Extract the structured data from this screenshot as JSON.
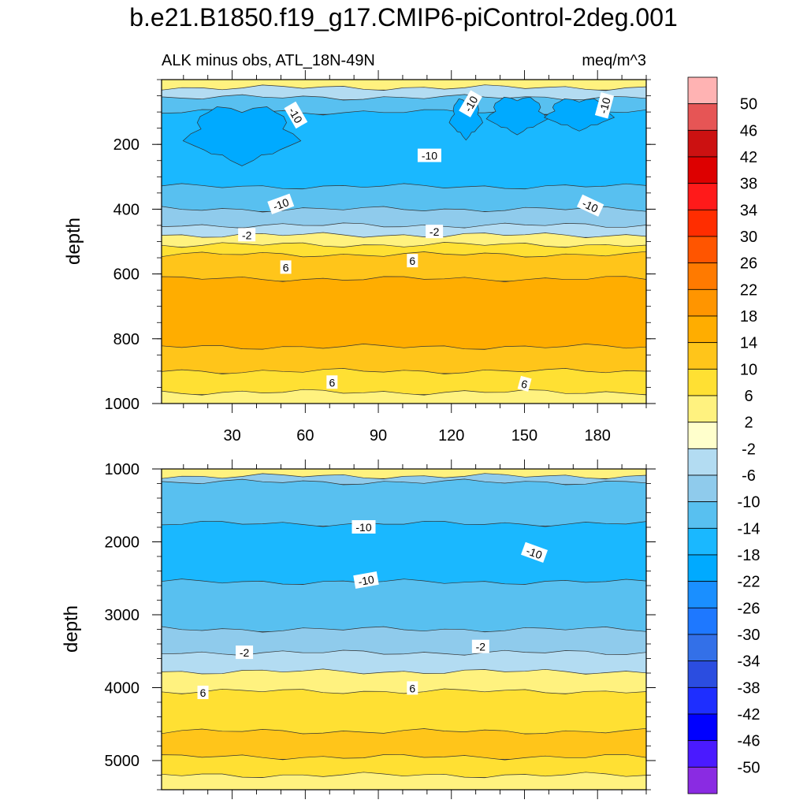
{
  "chart_data": [
    {
      "type": "heatmap",
      "panel": "upper",
      "title": "b.e21.B1850.f19_g17.CMIP6-piControl-2deg.001",
      "left_string": "ALK minus obs, ATL_18N-49N",
      "right_string": "meq/m^3",
      "xlabel": "",
      "ylabel": "depth",
      "xlim": [
        1,
        200
      ],
      "ylim": [
        0,
        1000
      ],
      "y_inverted": true,
      "x_ticks": [
        30,
        60,
        90,
        120,
        150,
        180
      ],
      "y_ticks": [
        200,
        400,
        600,
        800,
        1000
      ],
      "bands": [
        {
          "top": 0,
          "bottom": 25,
          "level": "2"
        },
        {
          "top": 25,
          "bottom": 55,
          "level": "-2"
        },
        {
          "top": 55,
          "bottom": 100,
          "level": "-10"
        },
        {
          "top": 100,
          "bottom": 330,
          "level": "-14"
        },
        {
          "top": 330,
          "bottom": 400,
          "level": "-10"
        },
        {
          "top": 400,
          "bottom": 450,
          "level": "-6"
        },
        {
          "top": 450,
          "bottom": 480,
          "level": "-2"
        },
        {
          "top": 480,
          "bottom": 510,
          "level": "2"
        },
        {
          "top": 510,
          "bottom": 540,
          "level": "6"
        },
        {
          "top": 540,
          "bottom": 615,
          "level": "10"
        },
        {
          "top": 615,
          "bottom": 825,
          "level": "14"
        },
        {
          "top": 825,
          "bottom": 900,
          "level": "10"
        },
        {
          "top": 900,
          "bottom": 965,
          "level": "6"
        },
        {
          "top": 965,
          "bottom": 1000,
          "level": "2"
        }
      ],
      "patches": [
        {
          "x": 13,
          "y": 85,
          "x2": 55,
          "y2": 250,
          "level": "-18"
        },
        {
          "x": 120,
          "y": 60,
          "x2": 132,
          "y2": 175,
          "level": "-18"
        },
        {
          "x": 136,
          "y": 55,
          "x2": 158,
          "y2": 160,
          "level": "-18"
        },
        {
          "x": 160,
          "y": 60,
          "x2": 185,
          "y2": 150,
          "level": "-18"
        }
      ],
      "contour_labels": [
        {
          "text": "-10",
          "x": 56,
          "y": 110,
          "rot": 60
        },
        {
          "text": "-10",
          "x": 128,
          "y": 75,
          "rot": -60
        },
        {
          "text": "-10",
          "x": 183,
          "y": 80,
          "rot": -75
        },
        {
          "text": "-10",
          "x": 111,
          "y": 235,
          "rot": 0
        },
        {
          "text": "-10",
          "x": 50,
          "y": 385,
          "rot": -20
        },
        {
          "text": "-10",
          "x": 177,
          "y": 390,
          "rot": 25
        },
        {
          "text": "-2",
          "x": 36,
          "y": 480,
          "rot": 0
        },
        {
          "text": "-2",
          "x": 113,
          "y": 470,
          "rot": 0
        },
        {
          "text": "6",
          "x": 52,
          "y": 580,
          "rot": 0
        },
        {
          "text": "6",
          "x": 104,
          "y": 560,
          "rot": 0
        },
        {
          "text": "6",
          "x": 71,
          "y": 935,
          "rot": 0
        },
        {
          "text": "6",
          "x": 150,
          "y": 940,
          "rot": 15
        }
      ]
    },
    {
      "type": "heatmap",
      "panel": "lower",
      "xlabel": "",
      "ylabel": "depth",
      "xlim": [
        1,
        200
      ],
      "ylim": [
        1000,
        5400
      ],
      "y_inverted": true,
      "y_ticks": [
        1000,
        2000,
        3000,
        4000,
        5000
      ],
      "bands": [
        {
          "top": 1000,
          "bottom": 1100,
          "level": "2"
        },
        {
          "top": 1100,
          "bottom": 1180,
          "level": "-6"
        },
        {
          "top": 1180,
          "bottom": 1750,
          "level": "-10"
        },
        {
          "top": 1750,
          "bottom": 2550,
          "level": "-14"
        },
        {
          "top": 2550,
          "bottom": 3200,
          "level": "-10"
        },
        {
          "top": 3200,
          "bottom": 3520,
          "level": "-6"
        },
        {
          "top": 3520,
          "bottom": 3780,
          "level": "-2"
        },
        {
          "top": 3780,
          "bottom": 4050,
          "level": "2"
        },
        {
          "top": 4050,
          "bottom": 4600,
          "level": "6"
        },
        {
          "top": 4600,
          "bottom": 4950,
          "level": "10"
        },
        {
          "top": 4950,
          "bottom": 5200,
          "level": "6"
        },
        {
          "top": 5200,
          "bottom": 5400,
          "level": "2"
        }
      ],
      "contour_labels": [
        {
          "text": "-10",
          "x": 84,
          "y": 1800,
          "rot": 0
        },
        {
          "text": "-10",
          "x": 154,
          "y": 2150,
          "rot": 20
        },
        {
          "text": "-10",
          "x": 85,
          "y": 2530,
          "rot": -10
        },
        {
          "text": "-2",
          "x": 35,
          "y": 3520,
          "rot": 0
        },
        {
          "text": "-2",
          "x": 132,
          "y": 3440,
          "rot": 0
        },
        {
          "text": "6",
          "x": 18,
          "y": 4070,
          "rot": 0
        },
        {
          "text": "6",
          "x": 104,
          "y": 4010,
          "rot": 0
        }
      ]
    }
  ],
  "colorbar": {
    "labels": [
      "50",
      "46",
      "42",
      "38",
      "34",
      "30",
      "26",
      "22",
      "18",
      "14",
      "10",
      "6",
      "2",
      "-2",
      "-6",
      "-10",
      "-14",
      "-18",
      "-22",
      "-26",
      "-30",
      "-34",
      "-38",
      "-42",
      "-46",
      "-50"
    ],
    "colors": [
      "#ffb3b3",
      "#e65555",
      "#cc1111",
      "#dd0000",
      "#ff1a1a",
      "#ff2d00",
      "#ff5500",
      "#ff7a00",
      "#ff9500",
      "#ffad00",
      "#ffc51a",
      "#ffe033",
      "#fff27f",
      "#ffffcc",
      "#b3dcf2",
      "#8fcbec",
      "#58c0f0",
      "#1ab8ff",
      "#00aaff",
      "#1a8fff",
      "#1e78ff",
      "#3370e8",
      "#2b4de0",
      "#1e2eff",
      "#0000ff",
      "#4a1aff",
      "#8a2be2"
    ],
    "level_colors": {
      "2": "#fff27f",
      "6": "#ffe033",
      "10": "#ffc51a",
      "14": "#ffad00",
      "-2": "#b3dcf2",
      "-6": "#8fcbec",
      "-10": "#58c0f0",
      "-14": "#1ab8ff",
      "-18": "#00aaff"
    }
  }
}
